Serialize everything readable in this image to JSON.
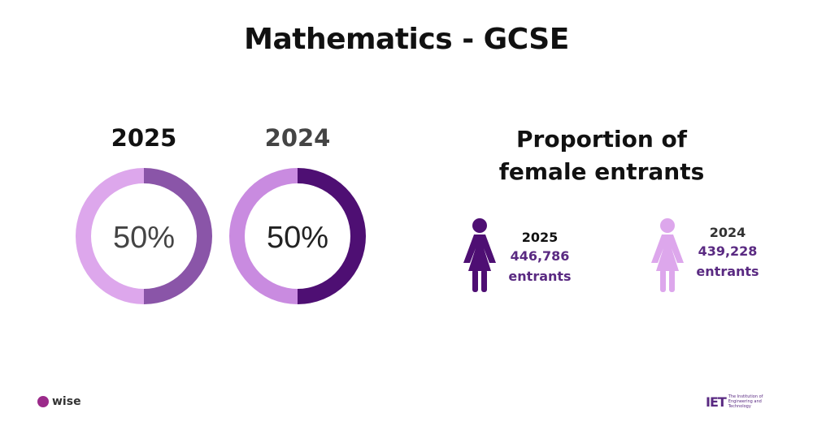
{
  "title": "Mathematics - GCSE",
  "chart_data": [
    {
      "type": "pie",
      "title": "2025",
      "center_label": "50%",
      "values": [
        50,
        50
      ],
      "colors": [
        "#dda7ec",
        "#8a55a8"
      ]
    },
    {
      "type": "pie",
      "title": "2024",
      "center_label": "50%",
      "values": [
        50,
        50
      ],
      "colors": [
        "#c98be0",
        "#4e0f73"
      ]
    }
  ],
  "proportion": {
    "title_line1": "Proportion of",
    "title_line2": "female entrants",
    "items": [
      {
        "year": "2025",
        "count": "446,786",
        "unit": "entrants",
        "icon": "female-figure-icon",
        "color": "#4e0f73"
      },
      {
        "year": "2024",
        "count": "439,228",
        "unit": "entrants",
        "icon": "female-figure-icon",
        "color": "#dda7ec"
      }
    ]
  },
  "logos": {
    "wise": "wise",
    "iet_mark": "IET",
    "iet_text": "The Institution of Engineering and Technology"
  },
  "colors": {
    "purple_text": "#5a2a82"
  }
}
